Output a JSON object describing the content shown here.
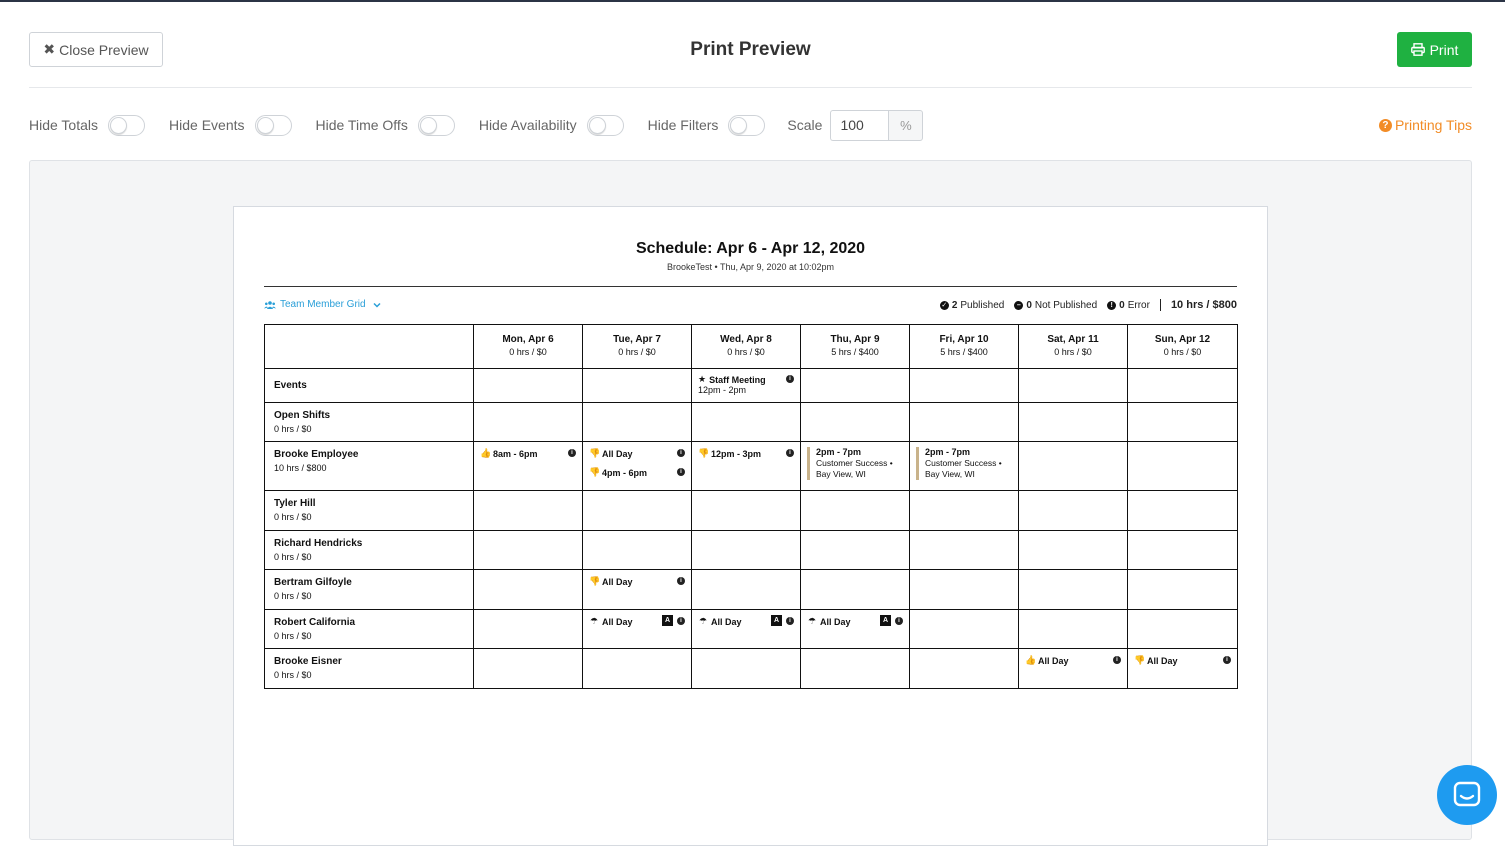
{
  "header": {
    "close_label": "Close Preview",
    "title": "Print Preview",
    "print_label": "Print"
  },
  "toolbar": {
    "toggles": [
      {
        "label": "Hide Totals",
        "on": false
      },
      {
        "label": "Hide Events",
        "on": false
      },
      {
        "label": "Hide Time Offs",
        "on": false
      },
      {
        "label": "Hide Availability",
        "on": false
      },
      {
        "label": "Hide Filters",
        "on": false
      }
    ],
    "scale_label": "Scale",
    "scale_value": "100",
    "scale_unit": "%",
    "tips_label": "Printing Tips"
  },
  "schedule": {
    "title": "Schedule: Apr 6 - Apr 12, 2020",
    "subtitle": "BrookeTest • Thu, Apr 9, 2020 at 10:02pm",
    "view_label": "Team Member Grid",
    "published": "2",
    "published_label": "Published",
    "not_published": "0",
    "not_published_label": "Not Published",
    "error": "0",
    "error_label": "Error",
    "total": "10 hrs / $800",
    "days": [
      {
        "day": "Mon, Apr 6",
        "total": "0 hrs / $0"
      },
      {
        "day": "Tue, Apr 7",
        "total": "0 hrs / $0"
      },
      {
        "day": "Wed, Apr 8",
        "total": "0 hrs / $0"
      },
      {
        "day": "Thu, Apr 9",
        "total": "5 hrs / $400"
      },
      {
        "day": "Fri, Apr 10",
        "total": "5 hrs / $400"
      },
      {
        "day": "Sat, Apr 11",
        "total": "0 hrs / $0"
      },
      {
        "day": "Sun, Apr 12",
        "total": "0 hrs / $0"
      }
    ],
    "rows": {
      "events": {
        "name": "Events",
        "staff_meeting": "Staff Meeting",
        "staff_meeting_time": "12pm - 2pm"
      },
      "open_shifts": {
        "name": "Open Shifts",
        "total": "0 hrs / $0"
      },
      "brooke_employee": {
        "name": "Brooke Employee",
        "total": "10 hrs / $800",
        "mon": "8am - 6pm",
        "tue_1": "All Day",
        "tue_2": "4pm - 6pm",
        "wed": "12pm - 3pm",
        "thu_time": "2pm - 7pm",
        "thu_detail": "Customer Success • Bay View, WI",
        "fri_time": "2pm - 7pm",
        "fri_detail": "Customer Success • Bay View, WI"
      },
      "tyler": {
        "name": "Tyler Hill",
        "total": "0 hrs / $0"
      },
      "richard": {
        "name": "Richard Hendricks",
        "total": "0 hrs / $0"
      },
      "bertram": {
        "name": "Bertram Gilfoyle",
        "total": "0 hrs / $0",
        "tue": "All Day"
      },
      "robert": {
        "name": "Robert California",
        "total": "0 hrs / $0",
        "tue": "All Day",
        "wed": "All Day",
        "thu": "All Day",
        "badge": "A"
      },
      "brooke_eisner": {
        "name": "Brooke Eisner",
        "total": "0 hrs / $0",
        "sat": "All Day",
        "sun": "All Day"
      }
    }
  },
  "colors": {
    "print_green": "#1fb141",
    "tips_orange": "#f28c26",
    "link_blue": "#2a9fd8",
    "chat_blue": "#1e9bf0"
  },
  "icons": [
    "times-icon",
    "printer-icon",
    "question-circle-icon",
    "users-icon",
    "chevron-down-icon",
    "check-circle-icon",
    "minus-circle-icon",
    "info-circle-icon",
    "star-icon",
    "thumbs-up-icon",
    "thumbs-down-icon",
    "umbrella-icon",
    "chat-icon"
  ]
}
